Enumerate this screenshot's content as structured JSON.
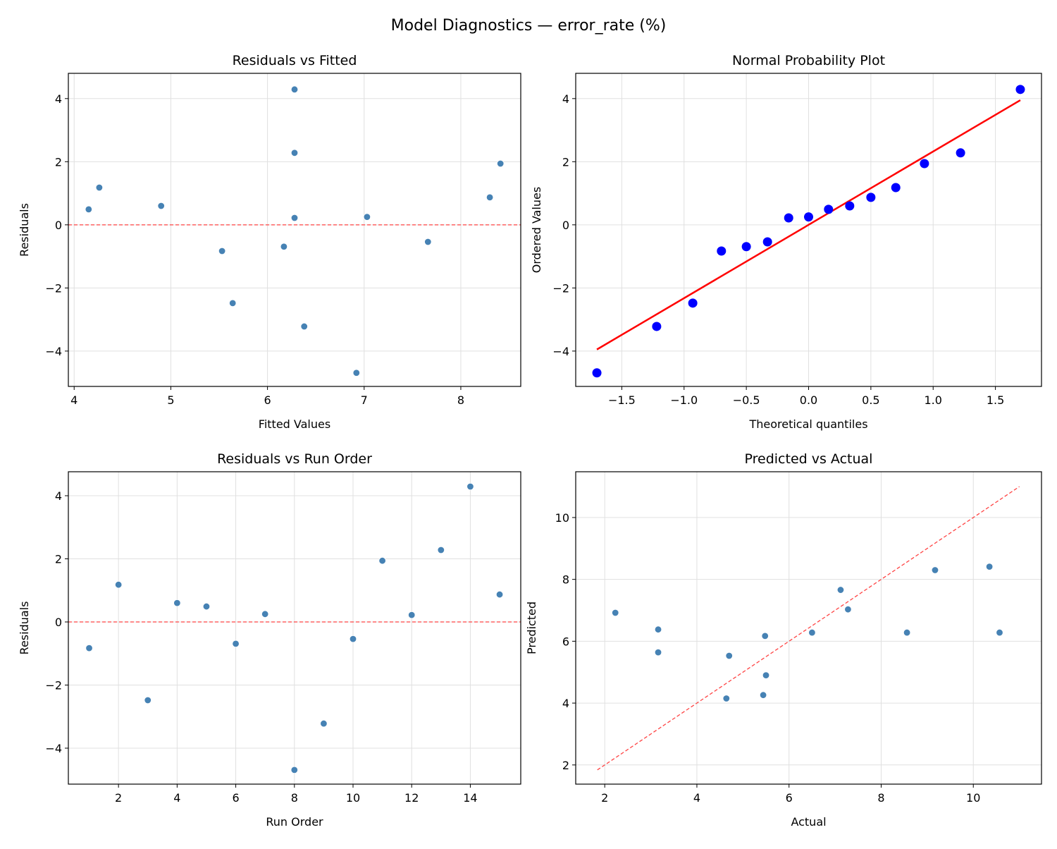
{
  "suptitle": "Model Diagnostics — error_rate (%)",
  "colors": {
    "point": "#4682b4",
    "qq_point": "#0000ff",
    "fit_line": "#ff0000",
    "ref_line": "#ff4444",
    "grid": "#e0e0e0"
  },
  "chart_data": [
    {
      "type": "scatter",
      "title": "Residuals vs Fitted",
      "xlabel": "Fitted Values",
      "ylabel": "Residuals",
      "xlim": [
        3.94,
        8.62
      ],
      "ylim": [
        -5.12,
        4.8
      ],
      "xticks": [
        4,
        5,
        6,
        7,
        8
      ],
      "yticks": [
        -4,
        -2,
        0,
        2,
        4
      ],
      "grid": true,
      "reference": {
        "type": "hline",
        "y": 0,
        "style": "dashed"
      },
      "x": [
        5.53,
        4.26,
        5.64,
        4.9,
        4.15,
        6.17,
        7.03,
        6.92,
        6.38,
        7.66,
        8.41,
        6.28,
        6.28,
        6.28,
        8.3
      ],
      "y": [
        -0.83,
        1.18,
        -2.48,
        0.6,
        0.49,
        -0.69,
        0.25,
        -4.69,
        -3.22,
        -0.54,
        1.94,
        0.22,
        2.28,
        4.29,
        0.87
      ]
    },
    {
      "type": "scatter",
      "title": "Normal Probability Plot",
      "xlabel": "Theoretical quantiles",
      "ylabel": "Ordered Values",
      "xlim": [
        -1.87,
        1.87
      ],
      "ylim": [
        -5.12,
        4.8
      ],
      "xticks": [
        -1.5,
        -1.0,
        -0.5,
        0.0,
        0.5,
        1.0,
        1.5
      ],
      "yticks": [
        -4,
        -2,
        0,
        2,
        4
      ],
      "grid": true,
      "fit_line": {
        "x": [
          -1.7,
          1.7
        ],
        "y": [
          -3.95,
          3.95
        ]
      },
      "x": [
        -1.7,
        -1.22,
        -0.93,
        -0.7,
        -0.5,
        -0.33,
        -0.16,
        0.0,
        0.16,
        0.33,
        0.5,
        0.7,
        0.93,
        1.22,
        1.7
      ],
      "y": [
        -4.69,
        -3.22,
        -2.48,
        -0.83,
        -0.69,
        -0.54,
        0.22,
        0.25,
        0.49,
        0.6,
        0.87,
        1.18,
        1.94,
        2.28,
        4.29
      ]
    },
    {
      "type": "scatter",
      "title": "Residuals vs Run Order",
      "xlabel": "Run Order",
      "ylabel": "Residuals",
      "xlim": [
        0.29,
        15.72
      ],
      "ylim": [
        -5.14,
        4.76
      ],
      "xticks": [
        2,
        4,
        6,
        8,
        10,
        12,
        14
      ],
      "yticks": [
        -4,
        -2,
        0,
        2,
        4
      ],
      "grid": true,
      "reference": {
        "type": "hline",
        "y": 0,
        "style": "dashed"
      },
      "x": [
        1,
        2,
        3,
        4,
        5,
        6,
        7,
        8,
        9,
        10,
        11,
        12,
        13,
        14,
        15
      ],
      "y": [
        -0.83,
        1.18,
        -2.48,
        0.6,
        0.49,
        -0.69,
        0.25,
        -4.69,
        -3.22,
        -0.54,
        1.94,
        0.22,
        2.28,
        4.29,
        0.87
      ]
    },
    {
      "type": "scatter",
      "title": "Predicted vs Actual",
      "xlabel": "Actual",
      "ylabel": "Predicted",
      "xlim": [
        1.37,
        11.48
      ],
      "ylim": [
        1.38,
        11.48
      ],
      "xticks": [
        2,
        4,
        6,
        8,
        10
      ],
      "yticks": [
        2,
        4,
        6,
        8,
        10
      ],
      "grid": true,
      "reference": {
        "type": "diagonal",
        "from": 1.84,
        "to": 11.0,
        "style": "dashed"
      },
      "x": [
        4.7,
        5.44,
        3.16,
        5.5,
        4.64,
        5.48,
        7.28,
        2.23,
        3.16,
        7.12,
        10.35,
        6.5,
        8.56,
        10.57,
        9.17
      ],
      "y": [
        5.53,
        4.26,
        5.64,
        4.9,
        4.15,
        6.17,
        7.03,
        6.92,
        6.38,
        7.66,
        8.41,
        6.28,
        6.28,
        6.28,
        8.3
      ]
    }
  ]
}
